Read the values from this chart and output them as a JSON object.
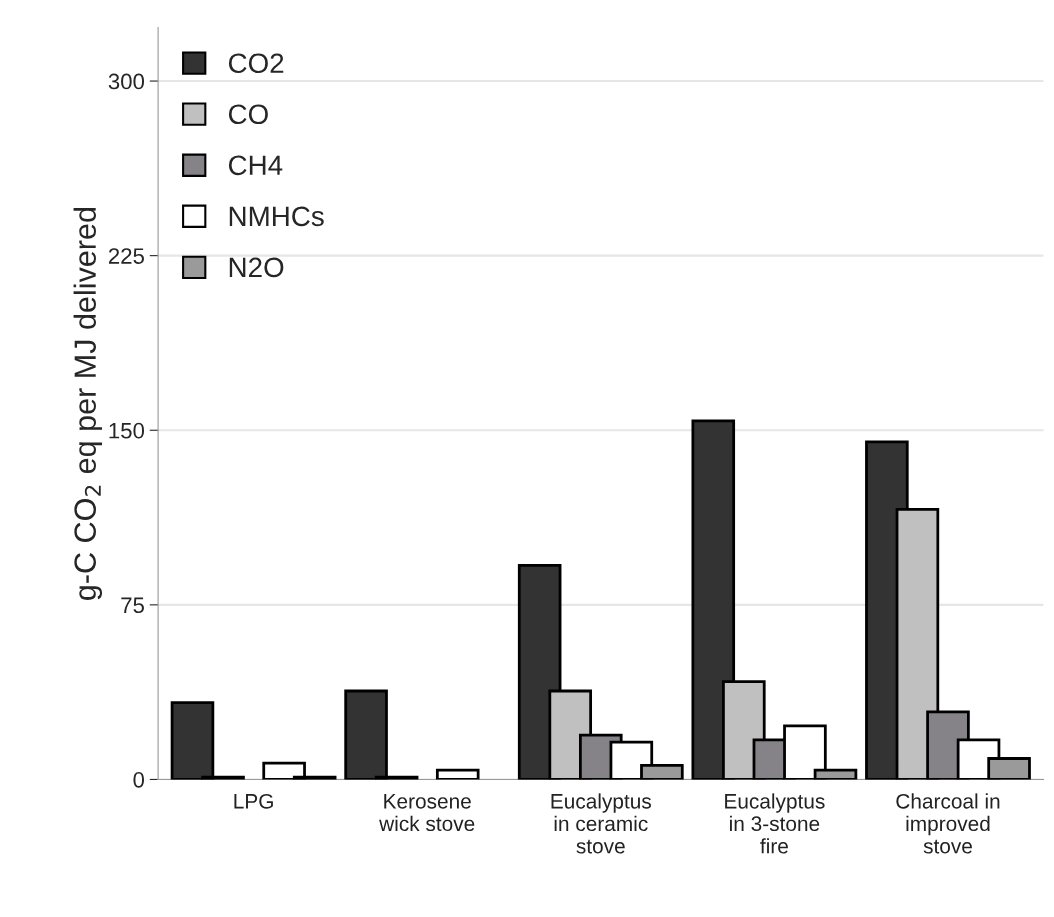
{
  "chart_data": {
    "type": "bar",
    "ylabel": "g-C CO$_{2}$ eq per MJ delivered",
    "categories": [
      "LPG",
      "Kerosene\nwick stove",
      "Eucalyptus\nin ceramic\nstove",
      "Eucalyptus\nin 3-stone\nfire",
      "Charcoal in\nimproved\nstove"
    ],
    "series": [
      {
        "name": "CO2",
        "color": "#333333",
        "values": [
          33,
          38,
          92,
          154,
          145
        ]
      },
      {
        "name": "CO",
        "color": "#c0c0c0",
        "values": [
          1,
          1,
          38,
          42,
          116
        ]
      },
      {
        "name": "CH4",
        "color": "#858288",
        "values": [
          null,
          null,
          19,
          17,
          29
        ]
      },
      {
        "name": "NMHCs",
        "color": "#ffffff",
        "values": [
          7,
          4,
          16,
          23,
          17
        ]
      },
      {
        "name": "N2O",
        "color": "#9a9a9a",
        "values": [
          1,
          null,
          6,
          4,
          9
        ]
      }
    ],
    "ylim": [
      0,
      323
    ],
    "yticks": [
      0,
      75,
      150,
      225,
      300
    ],
    "grid": "y",
    "legend": "top left"
  }
}
